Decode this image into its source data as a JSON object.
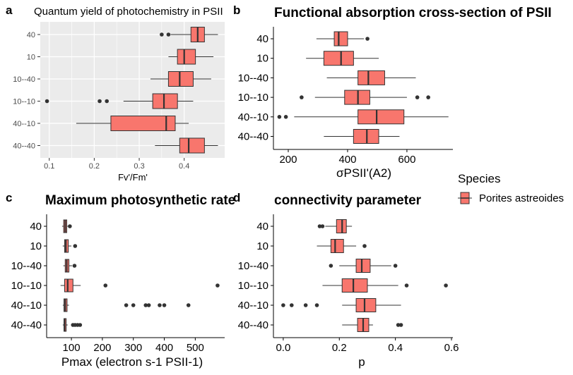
{
  "colors": {
    "box_fill": "#F8766D",
    "panel_bg_grey": "#EBEBEB",
    "grid": "#FFFFFF",
    "line": "#333333",
    "point": "#333333"
  },
  "legend": {
    "title": "Species",
    "items": [
      {
        "label": "Porites astreoides",
        "color": "#F8766D"
      }
    ]
  },
  "chart_data": [
    {
      "panel_letter": "a",
      "type": "boxplot",
      "orientation": "horizontal",
      "theme": "grey",
      "title": "Quantum yield of photochemistry in PSII",
      "xlabel": "Fv'/Fm'",
      "ylabel": "",
      "xlim": [
        0.08,
        0.49
      ],
      "xticks": [
        0.1,
        0.2,
        0.3,
        0.4
      ],
      "xticklabels": [
        "0.1",
        "0.2",
        "0.3",
        "0.4"
      ],
      "grid": true,
      "categories": [
        "40",
        "10",
        "10--40",
        "10--10",
        "40--10",
        "40--40"
      ],
      "boxes": [
        {
          "category": "40",
          "whisker_low": 0.37,
          "q1": 0.415,
          "median": 0.43,
          "q3": 0.445,
          "whisker_high": 0.475,
          "outliers": [
            0.35,
            0.365
          ]
        },
        {
          "category": "10",
          "whisker_low": 0.365,
          "q1": 0.385,
          "median": 0.4,
          "q3": 0.425,
          "whisker_high": 0.465,
          "outliers": []
        },
        {
          "category": "10--40",
          "whisker_low": 0.325,
          "q1": 0.365,
          "median": 0.39,
          "q3": 0.42,
          "whisker_high": 0.46,
          "outliers": []
        },
        {
          "category": "10--10",
          "whisker_low": 0.265,
          "q1": 0.33,
          "median": 0.355,
          "q3": 0.385,
          "whisker_high": 0.42,
          "outliers": [
            0.095,
            0.212,
            0.228
          ]
        },
        {
          "category": "40--10",
          "whisker_low": 0.16,
          "q1": 0.237,
          "median": 0.36,
          "q3": 0.38,
          "whisker_high": 0.41,
          "outliers": []
        },
        {
          "category": "40--40",
          "whisker_low": 0.335,
          "q1": 0.39,
          "median": 0.41,
          "q3": 0.445,
          "whisker_high": 0.475,
          "outliers": []
        }
      ]
    },
    {
      "panel_letter": "b",
      "type": "boxplot",
      "orientation": "horizontal",
      "theme": "classic",
      "title": "Functional absorption cross-section of PSII",
      "xlabel": "σPSII'(A2)",
      "ylabel": "",
      "xlim": [
        150,
        755
      ],
      "xticks": [
        200,
        400,
        600
      ],
      "xticklabels": [
        "200",
        "400",
        "600"
      ],
      "grid": false,
      "categories": [
        "40",
        "10",
        "10--40",
        "10--10",
        "40--10",
        "40--40"
      ],
      "boxes": [
        {
          "category": "40",
          "whisker_low": 295,
          "q1": 355,
          "median": 370,
          "q3": 400,
          "whisker_high": 455,
          "outliers": [
            467
          ]
        },
        {
          "category": "10",
          "whisker_low": 260,
          "q1": 320,
          "median": 378,
          "q3": 420,
          "whisker_high": 505,
          "outliers": []
        },
        {
          "category": "10--40",
          "whisker_low": 330,
          "q1": 435,
          "median": 470,
          "q3": 525,
          "whisker_high": 630,
          "outliers": []
        },
        {
          "category": "10--10",
          "whisker_low": 290,
          "q1": 390,
          "median": 435,
          "q3": 475,
          "whisker_high": 600,
          "outliers": [
            245,
            635,
            672
          ]
        },
        {
          "category": "40--10",
          "whisker_low": 220,
          "q1": 435,
          "median": 498,
          "q3": 590,
          "whisker_high": 740,
          "outliers": [
            170,
            192
          ]
        },
        {
          "category": "40--40",
          "whisker_low": 320,
          "q1": 420,
          "median": 465,
          "q3": 505,
          "whisker_high": 575,
          "outliers": []
        }
      ]
    },
    {
      "panel_letter": "c",
      "type": "boxplot",
      "orientation": "horizontal",
      "theme": "classic",
      "title": "Maximum photosynthetic rate",
      "xlabel": "Pmax (electron s-1 PSII-1)",
      "ylabel": "",
      "xlim": [
        20,
        595
      ],
      "xticks": [
        100,
        200,
        300,
        400,
        500
      ],
      "xticklabels": [
        "100",
        "200",
        "300",
        "400",
        "500"
      ],
      "grid": false,
      "categories": [
        "40",
        "10",
        "10--40",
        "10--10",
        "40--10",
        "40--40"
      ],
      "boxes": [
        {
          "category": "40",
          "whisker_low": 70,
          "q1": 75,
          "median": 80,
          "q3": 85,
          "whisker_high": 88,
          "outliers": [
            95
          ]
        },
        {
          "category": "10",
          "whisker_low": 72,
          "q1": 78,
          "median": 82,
          "q3": 90,
          "whisker_high": 100,
          "outliers": [
            112
          ]
        },
        {
          "category": "10--40",
          "whisker_low": 74,
          "q1": 80,
          "median": 85,
          "q3": 92,
          "whisker_high": 102,
          "outliers": [
            110
          ]
        },
        {
          "category": "10--10",
          "whisker_low": 65,
          "q1": 78,
          "median": 88,
          "q3": 105,
          "whisker_high": 130,
          "outliers": [
            210,
            572
          ]
        },
        {
          "category": "40--10",
          "whisker_low": 72,
          "q1": 76,
          "median": 80,
          "q3": 86,
          "whisker_high": 92,
          "outliers": [
            277,
            300,
            340,
            350,
            385,
            400,
            478
          ]
        },
        {
          "category": "40--40",
          "whisker_low": 72,
          "q1": 76,
          "median": 78,
          "q3": 83,
          "whisker_high": 88,
          "outliers": [
            105,
            112,
            120,
            128
          ]
        }
      ]
    },
    {
      "panel_letter": "d",
      "type": "boxplot",
      "orientation": "horizontal",
      "theme": "classic",
      "title": "connectivity parameter",
      "xlabel": "p",
      "ylabel": "",
      "xlim": [
        -0.035,
        0.605
      ],
      "xticks": [
        0.0,
        0.2,
        0.4,
        0.6
      ],
      "xticklabels": [
        "0.0",
        "0.2",
        "0.4",
        "0.6"
      ],
      "grid": false,
      "categories": [
        "40",
        "10",
        "10--40",
        "10--10",
        "40--10",
        "40--40"
      ],
      "boxes": [
        {
          "category": "40",
          "whisker_low": 0.15,
          "q1": 0.19,
          "median": 0.21,
          "q3": 0.225,
          "whisker_high": 0.245,
          "outliers": [
            0.13,
            0.14
          ]
        },
        {
          "category": "10",
          "whisker_low": 0.12,
          "q1": 0.17,
          "median": 0.185,
          "q3": 0.215,
          "whisker_high": 0.26,
          "outliers": [
            0.29
          ]
        },
        {
          "category": "10--40",
          "whisker_low": 0.2,
          "q1": 0.26,
          "median": 0.28,
          "q3": 0.31,
          "whisker_high": 0.385,
          "outliers": [
            0.17,
            0.4
          ]
        },
        {
          "category": "10--10",
          "whisker_low": 0.14,
          "q1": 0.21,
          "median": 0.25,
          "q3": 0.3,
          "whisker_high": 0.41,
          "outliers": [
            0.44,
            0.58
          ]
        },
        {
          "category": "40--10",
          "whisker_low": 0.21,
          "q1": 0.26,
          "median": 0.29,
          "q3": 0.33,
          "whisker_high": 0.42,
          "outliers": [
            0.0,
            0.03,
            0.08,
            0.12
          ]
        },
        {
          "category": "40--40",
          "whisker_low": 0.21,
          "q1": 0.265,
          "median": 0.285,
          "q3": 0.305,
          "whisker_high": 0.32,
          "outliers": [
            0.41,
            0.42
          ]
        }
      ]
    }
  ]
}
